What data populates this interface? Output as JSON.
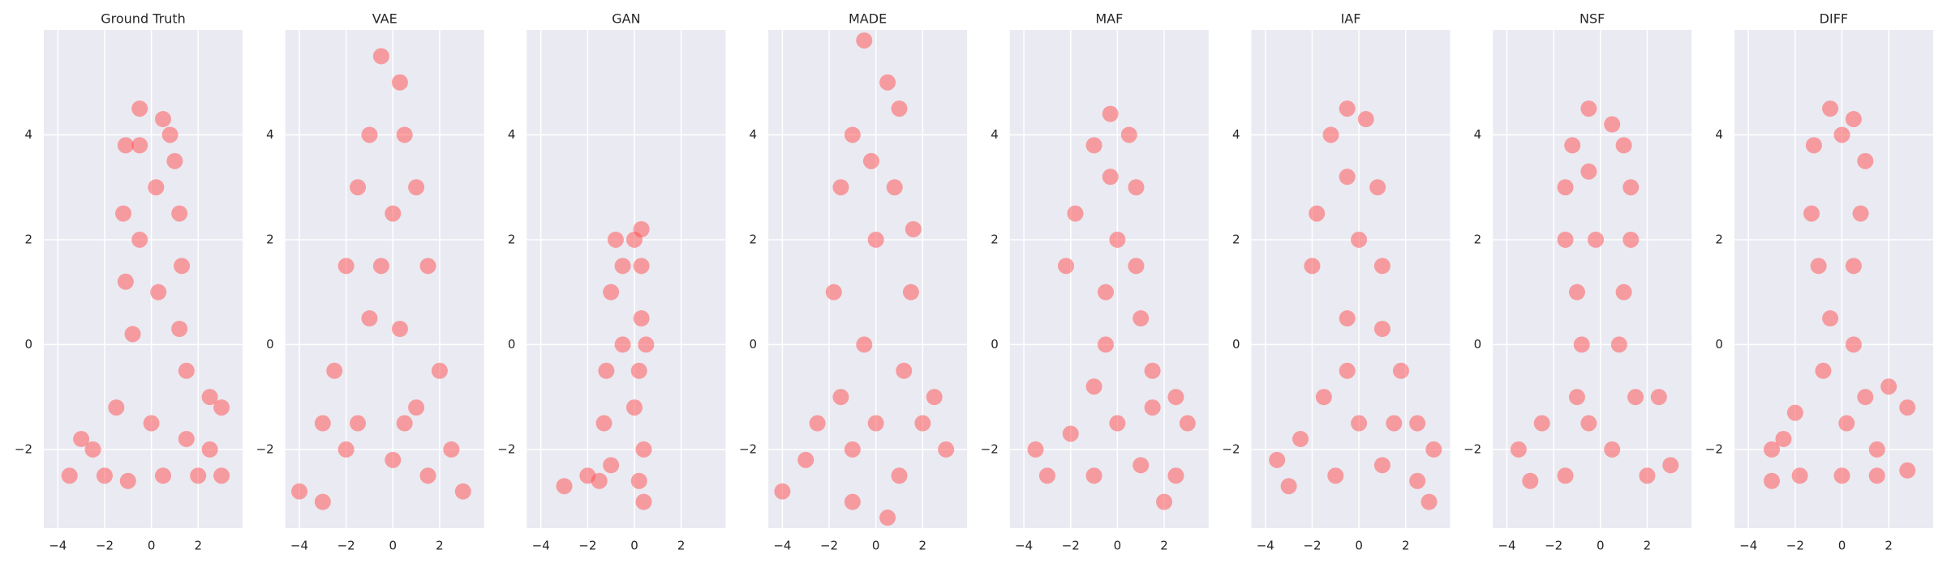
{
  "chart_data": [
    {
      "type": "scatter",
      "title": "Ground Truth",
      "color": "#ff4b4b",
      "grid": true,
      "xlim": [
        -4.6,
        3.9
      ],
      "ylim": [
        -3.5,
        6.0
      ],
      "xticks": [
        {
          "value": -4,
          "label": "−4"
        },
        {
          "value": -2,
          "label": "−2"
        },
        0,
        2
      ],
      "yticks": [
        {
          "value": -2,
          "label": "−2"
        },
        0,
        2,
        4
      ],
      "x": [
        -0.5,
        0.5,
        -1.1,
        1,
        -1.2,
        1.2,
        -1.1,
        1.3,
        -0.8,
        1.2,
        1.5,
        -1.5,
        2.5,
        3,
        -3,
        -3.5,
        -2,
        -1,
        0.5,
        2,
        3,
        -2.5,
        1.5,
        0,
        0.2,
        -0.5,
        0.3,
        2.5,
        -0.5,
        0.8
      ],
      "values": [
        4.5,
        4.3,
        3.8,
        3.5,
        2.5,
        2.5,
        1.2,
        1.5,
        0.2,
        0.3,
        -0.5,
        -1.2,
        -1,
        -1.2,
        -1.8,
        -2.5,
        -2.5,
        -2.6,
        -2.5,
        -2.5,
        -2.5,
        -2,
        -1.8,
        -1.5,
        3,
        2,
        1,
        -2,
        3.8,
        4.0
      ]
    },
    {
      "type": "scatter",
      "title": "VAE",
      "color": "#ff4b4b",
      "grid": true,
      "xlim": [
        -4.6,
        3.9
      ],
      "ylim": [
        -3.5,
        6.0
      ],
      "xticks": [
        {
          "value": -4,
          "label": "−4"
        },
        {
          "value": -2,
          "label": "−2"
        },
        0,
        2
      ],
      "yticks": [
        {
          "value": -2,
          "label": "−2"
        },
        0,
        2,
        4
      ],
      "x": [
        -0.5,
        0.3,
        -1,
        0.5,
        -1.5,
        1,
        0,
        -2,
        1.5,
        0.3,
        -1,
        -2.5,
        2,
        -3,
        1,
        -1.5,
        2.5,
        -4,
        0,
        -2,
        1.5,
        3,
        -3,
        0.5,
        -0.5
      ],
      "values": [
        5.5,
        5,
        4,
        4,
        3,
        3,
        2.5,
        1.5,
        1.5,
        0.3,
        0.5,
        -0.5,
        -0.5,
        -1.5,
        -1.2,
        -1.5,
        -2,
        -2.8,
        -2.2,
        -2,
        -2.5,
        -2.8,
        -3,
        -1.5,
        1.5
      ]
    },
    {
      "type": "scatter",
      "title": "GAN",
      "color": "#ff4b4b",
      "grid": true,
      "xlim": [
        -4.6,
        3.9
      ],
      "ylim": [
        -3.5,
        6.0
      ],
      "xticks": [
        {
          "value": -4,
          "label": "−4"
        },
        {
          "value": -2,
          "label": "−2"
        },
        0,
        2
      ],
      "yticks": [
        {
          "value": -2,
          "label": "−2"
        },
        0,
        2,
        4
      ],
      "x": [
        -0.8,
        0,
        0.3,
        -1,
        0.3,
        0.5,
        -1.2,
        0.2,
        -1.3,
        0,
        -0.5,
        0.4,
        -1,
        -2,
        -3,
        0.2,
        0.4,
        -1.5,
        -0.5,
        0.3
      ],
      "values": [
        2,
        2,
        1.5,
        1,
        0.5,
        0,
        -0.5,
        -0.5,
        -1.5,
        -1.2,
        1.5,
        -2,
        -2.3,
        -2.5,
        -2.7,
        -2.6,
        -3,
        -2.6,
        0,
        2.2
      ]
    },
    {
      "type": "scatter",
      "title": "MADE",
      "color": "#ff4b4b",
      "grid": true,
      "xlim": [
        -4.6,
        3.9
      ],
      "ylim": [
        -3.5,
        6.0
      ],
      "xticks": [
        {
          "value": -4,
          "label": "−4"
        },
        {
          "value": -2,
          "label": "−2"
        },
        0,
        2
      ],
      "yticks": [
        {
          "value": -2,
          "label": "−2"
        },
        0,
        2,
        4
      ],
      "x": [
        -0.5,
        0.5,
        -1,
        1,
        -1.5,
        0.8,
        0,
        -1.8,
        1.5,
        -0.5,
        1.2,
        -1.5,
        0,
        2,
        3,
        -3,
        -4,
        -2.5,
        1,
        -1,
        2.5,
        0.5,
        -0.2,
        1.6,
        -1
      ],
      "values": [
        5.8,
        5,
        4,
        4.5,
        3,
        3,
        2,
        1,
        1,
        0,
        -0.5,
        -1,
        -1.5,
        -1.5,
        -2,
        -2.2,
        -2.8,
        -1.5,
        -2.5,
        -3,
        -1,
        -3.3,
        3.5,
        2.2,
        -2
      ]
    },
    {
      "type": "scatter",
      "title": "MAF",
      "color": "#ff4b4b",
      "grid": true,
      "xlim": [
        -4.6,
        3.9
      ],
      "ylim": [
        -3.5,
        6.0
      ],
      "xticks": [
        {
          "value": -4,
          "label": "−4"
        },
        {
          "value": -2,
          "label": "−2"
        },
        0,
        2
      ],
      "yticks": [
        {
          "value": -2,
          "label": "−2"
        },
        0,
        2,
        4
      ],
      "x": [
        -0.3,
        0.5,
        -1,
        -1.8,
        0.8,
        -2.2,
        0,
        0.8,
        -0.5,
        1,
        -0.5,
        1.5,
        -1,
        2.5,
        3,
        -2,
        -3.5,
        -3,
        -1,
        1,
        2.5,
        0,
        2,
        1.5,
        -0.3
      ],
      "values": [
        4.4,
        4,
        3.8,
        2.5,
        3,
        1.5,
        2,
        1.5,
        1,
        0.5,
        0,
        -0.5,
        -0.8,
        -1,
        -1.5,
        -1.7,
        -2,
        -2.5,
        -2.5,
        -2.3,
        -2.5,
        -1.5,
        -3,
        -1.2,
        3.2
      ]
    },
    {
      "type": "scatter",
      "title": "IAF",
      "color": "#ff4b4b",
      "grid": true,
      "xlim": [
        -4.6,
        3.9
      ],
      "ylim": [
        -3.5,
        6.0
      ],
      "xticks": [
        {
          "value": -4,
          "label": "−4"
        },
        {
          "value": -2,
          "label": "−2"
        },
        0,
        2
      ],
      "yticks": [
        {
          "value": -2,
          "label": "−2"
        },
        0,
        2,
        4
      ],
      "x": [
        -0.5,
        0.3,
        -1.2,
        -1.8,
        0.8,
        -2,
        0,
        1,
        -0.5,
        1,
        -0.5,
        1.8,
        -1.5,
        2.5,
        3.2,
        -2.5,
        -3.5,
        -3,
        -1,
        1,
        2.5,
        0,
        3,
        1.5,
        -0.5
      ],
      "values": [
        4.5,
        4.3,
        4,
        2.5,
        3,
        1.5,
        2,
        1.5,
        0.5,
        0.3,
        -0.5,
        -0.5,
        -1,
        -1.5,
        -2,
        -1.8,
        -2.2,
        -2.7,
        -2.5,
        -2.3,
        -2.6,
        -1.5,
        -3,
        -1.5,
        3.2
      ]
    },
    {
      "type": "scatter",
      "title": "NSF",
      "color": "#ff4b4b",
      "grid": true,
      "xlim": [
        -4.6,
        3.9
      ],
      "ylim": [
        -3.5,
        6.0
      ],
      "xticks": [
        {
          "value": -4,
          "label": "−4"
        },
        {
          "value": -2,
          "label": "−2"
        },
        0,
        2
      ],
      "yticks": [
        {
          "value": -2,
          "label": "−2"
        },
        0,
        2,
        4
      ],
      "x": [
        -0.5,
        0.5,
        -1.2,
        1,
        -1.5,
        1.3,
        -1.5,
        1.3,
        -0.2,
        -1,
        1,
        -0.8,
        0.8,
        -1,
        1.5,
        2.5,
        -2.5,
        -3.5,
        -3,
        -1.5,
        0.5,
        2,
        3,
        -0.5,
        -0.5
      ],
      "values": [
        4.5,
        4.2,
        3.8,
        3.8,
        3,
        3,
        2,
        2,
        2,
        1,
        1,
        0,
        0,
        -1,
        -1,
        -1,
        -1.5,
        -2,
        -2.6,
        -2.5,
        -2,
        -2.5,
        -2.3,
        -1.5,
        3.3
      ]
    },
    {
      "type": "scatter",
      "title": "DIFF",
      "color": "#ff4b4b",
      "grid": true,
      "xlim": [
        -4.6,
        3.9
      ],
      "ylim": [
        -3.5,
        6.0
      ],
      "xticks": [
        {
          "value": -4,
          "label": "−4"
        },
        {
          "value": -2,
          "label": "−2"
        },
        0,
        2
      ],
      "yticks": [
        {
          "value": -2,
          "label": "−2"
        },
        0,
        2,
        4
      ],
      "x": [
        -0.5,
        0.5,
        -1.2,
        1,
        -1.3,
        0.8,
        -1,
        0.5,
        -0.5,
        0.5,
        -0.8,
        1,
        2,
        2.8,
        -2,
        -3,
        -3,
        -1.8,
        0,
        1.5,
        2.8,
        0.2,
        -2.5,
        1.5,
        0
      ],
      "values": [
        4.5,
        4.3,
        3.8,
        3.5,
        2.5,
        2.5,
        1.5,
        1.5,
        0.5,
        0,
        -0.5,
        -1,
        -0.8,
        -1.2,
        -1.3,
        -2,
        -2.6,
        -2.5,
        -2.5,
        -2.5,
        -2.4,
        -1.5,
        -1.8,
        -2,
        4
      ]
    }
  ]
}
